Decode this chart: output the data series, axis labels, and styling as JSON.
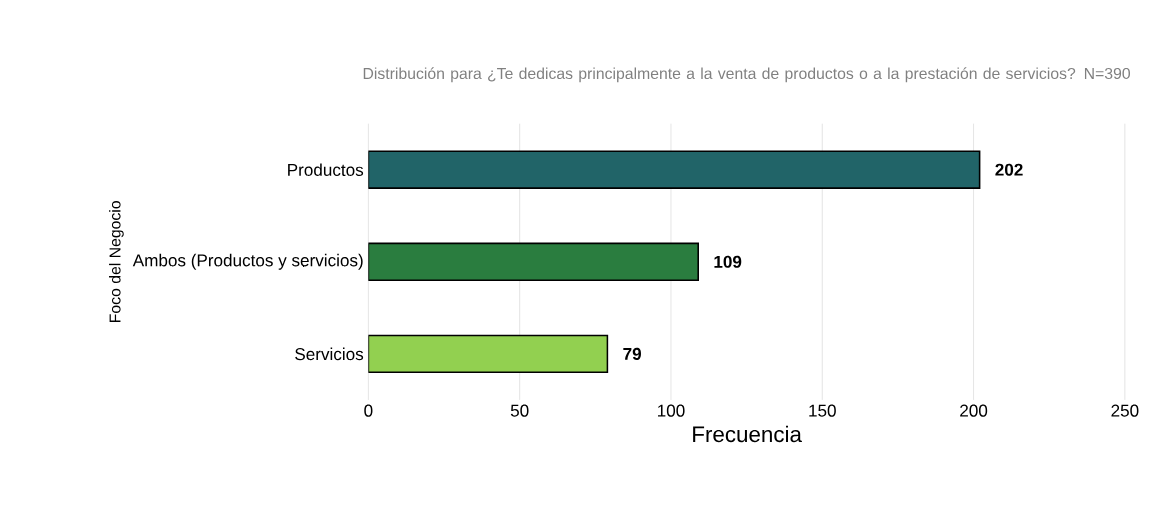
{
  "chart_data": {
    "type": "bar",
    "orientation": "horizontal",
    "title": "Distribución para ¿Te dedicas principalmente a la venta de productos o a la prestación de servicios? N=390",
    "xlabel": "Frecuencia",
    "ylabel": "Foco del Negocio",
    "categories": [
      "Productos",
      "Ambos (Productos y servicios)",
      "Servicios"
    ],
    "values": [
      202,
      109,
      79
    ],
    "colors": [
      "#216468",
      "#2a7d3f",
      "#92d050"
    ],
    "xlim": [
      0,
      250
    ],
    "xticks": [
      0,
      50,
      100,
      150,
      200,
      250
    ],
    "grid": "x",
    "data_labels": true
  }
}
